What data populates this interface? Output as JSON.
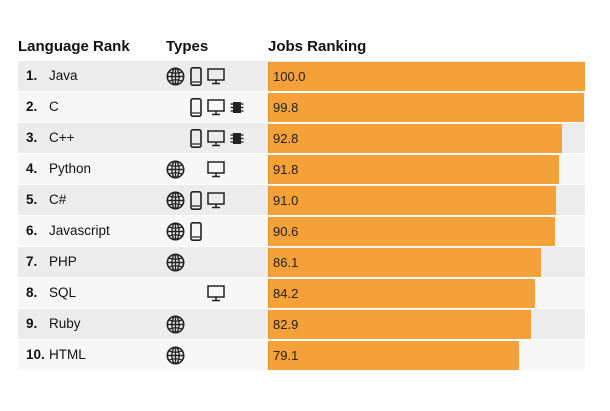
{
  "chart_data": {
    "type": "bar",
    "title": "",
    "columns": {
      "rank": "Language Rank",
      "types": "Types",
      "jobs": "Jobs Ranking"
    },
    "xlim": [
      0,
      100
    ],
    "rows": [
      {
        "rank": "1.",
        "language": "Java",
        "value": 100.0,
        "label": "100.0",
        "types": [
          "web",
          "mobile",
          "desktop"
        ]
      },
      {
        "rank": "2.",
        "language": "C",
        "value": 99.8,
        "label": "99.8",
        "types": [
          "mobile",
          "desktop",
          "embedded"
        ]
      },
      {
        "rank": "3.",
        "language": "C++",
        "value": 92.8,
        "label": "92.8",
        "types": [
          "mobile",
          "desktop",
          "embedded"
        ]
      },
      {
        "rank": "4.",
        "language": "Python",
        "value": 91.8,
        "label": "91.8",
        "types": [
          "web",
          "desktop"
        ]
      },
      {
        "rank": "5.",
        "language": "C#",
        "value": 91.0,
        "label": "91.0",
        "types": [
          "web",
          "mobile",
          "desktop"
        ]
      },
      {
        "rank": "6.",
        "language": "Javascript",
        "value": 90.6,
        "label": "90.6",
        "types": [
          "web",
          "mobile"
        ]
      },
      {
        "rank": "7.",
        "language": "PHP",
        "value": 86.1,
        "label": "86.1",
        "types": [
          "web"
        ]
      },
      {
        "rank": "8.",
        "language": "SQL",
        "value": 84.2,
        "label": "84.2",
        "types": [
          "desktop"
        ]
      },
      {
        "rank": "9.",
        "language": "Ruby",
        "value": 82.9,
        "label": "82.9",
        "types": [
          "web"
        ]
      },
      {
        "rank": "10.",
        "language": "HTML",
        "value": 79.1,
        "label": "79.1",
        "types": [
          "web"
        ]
      }
    ]
  },
  "colors": {
    "bar": "#f5a13a",
    "row_odd": "#ececec",
    "row_even": "#f7f7f7",
    "icon": "#222222"
  },
  "icons": {
    "web": "globe-icon",
    "mobile": "mobile-phone-icon",
    "desktop": "desktop-monitor-icon",
    "embedded": "chip-icon"
  }
}
